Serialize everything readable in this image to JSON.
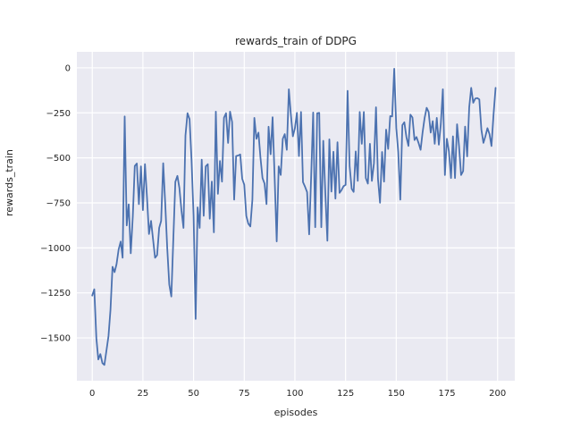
{
  "figure": {
    "title": "rewards_train of DDPG",
    "xlabel": "episodes",
    "ylabel": "rewards_train"
  },
  "colors": {
    "line": "#4C72B0",
    "axes_background": "#EAEAF2",
    "grid": "#FFFFFF",
    "text": "#262626",
    "figure_background": "#FFFFFF"
  },
  "chart_data": {
    "type": "line",
    "title": "rewards_train of DDPG",
    "xlabel": "episodes",
    "ylabel": "rewards_train",
    "legend": "none",
    "grid": true,
    "x_start": 0,
    "x_step": 1,
    "xlim": [
      -7.6,
      208.5
    ],
    "ylim": [
      -1738,
      89
    ],
    "xticks": [
      0,
      25,
      50,
      75,
      100,
      125,
      150,
      175,
      200
    ],
    "yticks": [
      0,
      -250,
      -500,
      -750,
      -1000,
      -1250,
      -1500
    ],
    "series": [
      {
        "name": "rewards_train",
        "values": [
          -1265,
          -1230,
          -1500,
          -1620,
          -1590,
          -1640,
          -1650,
          -1570,
          -1490,
          -1345,
          -1105,
          -1135,
          -1090,
          -1010,
          -965,
          -1055,
          -270,
          -875,
          -758,
          -1030,
          -825,
          -545,
          -531,
          -757,
          -547,
          -790,
          -535,
          -722,
          -923,
          -850,
          -955,
          -1055,
          -1040,
          -889,
          -850,
          -530,
          -757,
          -1000,
          -1204,
          -1270,
          -955,
          -633,
          -600,
          -666,
          -790,
          -889,
          -376,
          -252,
          -285,
          -510,
          -822,
          -1395,
          -775,
          -889,
          -510,
          -822,
          -547,
          -535,
          -838,
          -632,
          -914,
          -243,
          -700,
          -517,
          -632,
          -277,
          -252,
          -417,
          -243,
          -301,
          -732,
          -490,
          -487,
          -481,
          -616,
          -649,
          -823,
          -865,
          -881,
          -732,
          -278,
          -394,
          -360,
          -497,
          -612,
          -643,
          -757,
          -327,
          -480,
          -274,
          -612,
          -964,
          -547,
          -595,
          -394,
          -368,
          -455,
          -119,
          -257,
          -380,
          -334,
          -250,
          -490,
          -245,
          -635,
          -660,
          -690,
          -925,
          -612,
          -248,
          -885,
          -252,
          -250,
          -885,
          -405,
          -695,
          -960,
          -397,
          -687,
          -466,
          -726,
          -413,
          -695,
          -679,
          -657,
          -650,
          -128,
          -547,
          -672,
          -689,
          -464,
          -628,
          -245,
          -422,
          -245,
          -612,
          -643,
          -422,
          -628,
          -530,
          -219,
          -616,
          -749,
          -467,
          -632,
          -343,
          -450,
          -268,
          -270,
          -5,
          -334,
          -467,
          -732,
          -318,
          -302,
          -384,
          -434,
          -260,
          -276,
          -401,
          -384,
          -417,
          -455,
          -360,
          -278,
          -222,
          -245,
          -360,
          -296,
          -422,
          -278,
          -427,
          -313,
          -119,
          -595,
          -394,
          -464,
          -612,
          -380,
          -612,
          -313,
          -434,
          -595,
          -574,
          -326,
          -492,
          -219,
          -111,
          -194,
          -170,
          -168,
          -175,
          -343,
          -417,
          -380,
          -335,
          -368,
          -434,
          -260,
          -111
        ]
      }
    ]
  }
}
